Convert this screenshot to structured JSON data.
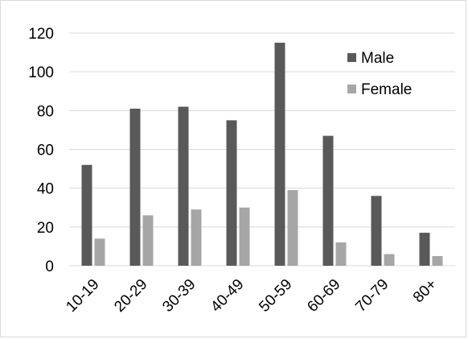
{
  "chart_data": {
    "type": "bar",
    "title": "",
    "xlabel": "",
    "ylabel": "",
    "categories": [
      "10-19",
      "20-29",
      "30-39",
      "40-49",
      "50-59",
      "60-69",
      "70-79",
      "80+"
    ],
    "series": [
      {
        "name": "Male",
        "color": "#595959",
        "values": [
          52,
          81,
          82,
          75,
          115,
          67,
          36,
          17
        ]
      },
      {
        "name": "Female",
        "color": "#a6a6a6",
        "values": [
          14,
          26,
          29,
          30,
          39,
          12,
          6,
          5
        ]
      }
    ],
    "ylim": [
      0,
      120
    ],
    "yticks": [
      0,
      20,
      40,
      60,
      80,
      100,
      120
    ],
    "grid": true,
    "legend": "top-right"
  }
}
